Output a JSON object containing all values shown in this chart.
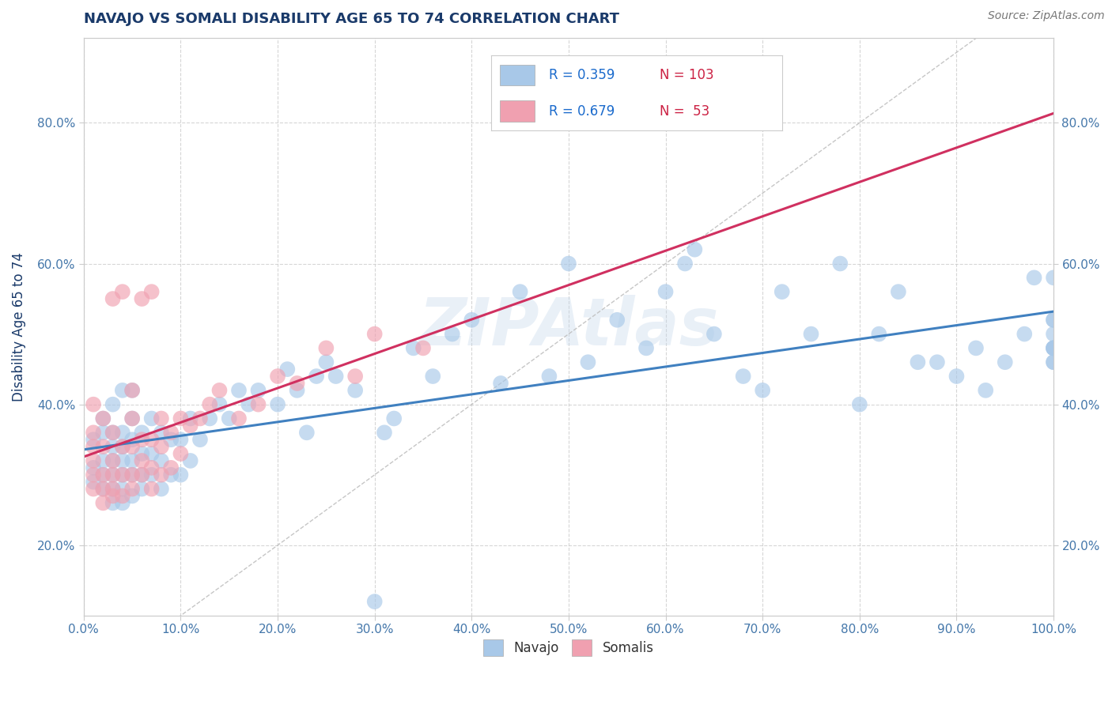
{
  "title": "NAVAJO VS SOMALI DISABILITY AGE 65 TO 74 CORRELATION CHART",
  "source": "Source: ZipAtlas.com",
  "ylabel": "Disability Age 65 to 74",
  "xlim": [
    0.0,
    1.0
  ],
  "ylim": [
    0.1,
    0.92
  ],
  "xticks": [
    0.0,
    0.1,
    0.2,
    0.3,
    0.4,
    0.5,
    0.6,
    0.7,
    0.8,
    0.9,
    1.0
  ],
  "ytick_vals": [
    0.2,
    0.4,
    0.6,
    0.8
  ],
  "navajo_R": 0.359,
  "navajo_N": 103,
  "somali_R": 0.679,
  "somali_N": 53,
  "navajo_color": "#a8c8e8",
  "somali_color": "#f0a0b0",
  "navajo_line_color": "#4080c0",
  "somali_line_color": "#d03060",
  "diag_line_color": "#c0c0c0",
  "background_color": "#ffffff",
  "grid_color": "#cccccc",
  "title_color": "#1a3a6a",
  "axis_label_color": "#1a3a6a",
  "tick_color": "#4477aa",
  "legend_R_color": "#1a6acc",
  "legend_N_color": "#cc2244",
  "watermark": "ZIPAtlas",
  "navajo_x": [
    0.01,
    0.01,
    0.01,
    0.02,
    0.02,
    0.02,
    0.02,
    0.02,
    0.03,
    0.03,
    0.03,
    0.03,
    0.03,
    0.03,
    0.03,
    0.04,
    0.04,
    0.04,
    0.04,
    0.04,
    0.04,
    0.04,
    0.05,
    0.05,
    0.05,
    0.05,
    0.05,
    0.05,
    0.06,
    0.06,
    0.06,
    0.06,
    0.07,
    0.07,
    0.07,
    0.08,
    0.08,
    0.08,
    0.09,
    0.09,
    0.1,
    0.1,
    0.11,
    0.11,
    0.12,
    0.13,
    0.14,
    0.15,
    0.16,
    0.17,
    0.18,
    0.2,
    0.21,
    0.22,
    0.23,
    0.24,
    0.25,
    0.26,
    0.28,
    0.3,
    0.31,
    0.32,
    0.34,
    0.36,
    0.38,
    0.4,
    0.43,
    0.45,
    0.48,
    0.5,
    0.52,
    0.55,
    0.58,
    0.6,
    0.62,
    0.63,
    0.65,
    0.68,
    0.7,
    0.72,
    0.75,
    0.78,
    0.8,
    0.82,
    0.84,
    0.86,
    0.88,
    0.9,
    0.92,
    0.93,
    0.95,
    0.97,
    0.98,
    1.0,
    1.0,
    1.0,
    1.0,
    1.0,
    1.0,
    1.0,
    1.0,
    1.0,
    1.0
  ],
  "navajo_y": [
    0.29,
    0.31,
    0.35,
    0.28,
    0.3,
    0.32,
    0.36,
    0.38,
    0.26,
    0.28,
    0.3,
    0.32,
    0.34,
    0.36,
    0.4,
    0.26,
    0.28,
    0.3,
    0.32,
    0.34,
    0.36,
    0.42,
    0.27,
    0.3,
    0.32,
    0.35,
    0.38,
    0.42,
    0.28,
    0.3,
    0.33,
    0.36,
    0.3,
    0.33,
    0.38,
    0.28,
    0.32,
    0.36,
    0.3,
    0.35,
    0.3,
    0.35,
    0.32,
    0.38,
    0.35,
    0.38,
    0.4,
    0.38,
    0.42,
    0.4,
    0.42,
    0.4,
    0.45,
    0.42,
    0.36,
    0.44,
    0.46,
    0.44,
    0.42,
    0.12,
    0.36,
    0.38,
    0.48,
    0.44,
    0.5,
    0.52,
    0.43,
    0.56,
    0.44,
    0.6,
    0.46,
    0.52,
    0.48,
    0.56,
    0.6,
    0.62,
    0.5,
    0.44,
    0.42,
    0.56,
    0.5,
    0.6,
    0.4,
    0.5,
    0.56,
    0.46,
    0.46,
    0.44,
    0.48,
    0.42,
    0.46,
    0.5,
    0.58,
    0.48,
    0.46,
    0.46,
    0.48,
    0.52,
    0.48,
    0.58,
    0.5,
    0.48,
    0.52
  ],
  "somali_x": [
    0.01,
    0.01,
    0.01,
    0.01,
    0.01,
    0.01,
    0.02,
    0.02,
    0.02,
    0.02,
    0.02,
    0.03,
    0.03,
    0.03,
    0.03,
    0.03,
    0.03,
    0.04,
    0.04,
    0.04,
    0.04,
    0.05,
    0.05,
    0.05,
    0.05,
    0.05,
    0.06,
    0.06,
    0.06,
    0.06,
    0.07,
    0.07,
    0.07,
    0.07,
    0.08,
    0.08,
    0.08,
    0.09,
    0.09,
    0.1,
    0.1,
    0.11,
    0.12,
    0.13,
    0.14,
    0.16,
    0.18,
    0.2,
    0.22,
    0.25,
    0.28,
    0.3,
    0.35
  ],
  "somali_y": [
    0.28,
    0.3,
    0.32,
    0.34,
    0.36,
    0.4,
    0.26,
    0.28,
    0.3,
    0.34,
    0.38,
    0.27,
    0.28,
    0.3,
    0.32,
    0.36,
    0.55,
    0.27,
    0.3,
    0.34,
    0.56,
    0.28,
    0.3,
    0.34,
    0.38,
    0.42,
    0.3,
    0.32,
    0.35,
    0.55,
    0.28,
    0.31,
    0.35,
    0.56,
    0.3,
    0.34,
    0.38,
    0.31,
    0.36,
    0.33,
    0.38,
    0.37,
    0.38,
    0.4,
    0.42,
    0.38,
    0.4,
    0.44,
    0.43,
    0.48,
    0.44,
    0.5,
    0.48
  ]
}
